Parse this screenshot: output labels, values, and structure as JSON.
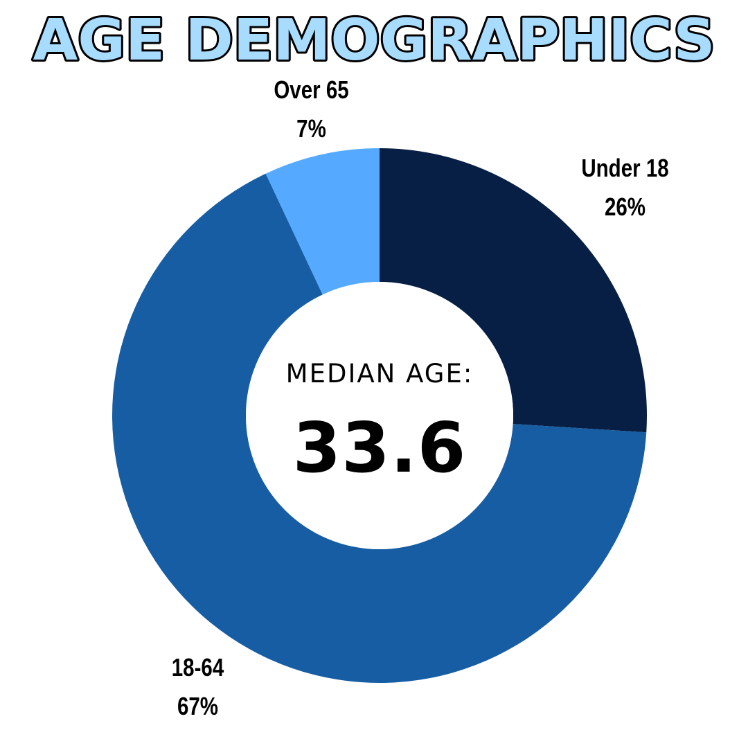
{
  "title": "AGE DEMOGRAPHICS",
  "center": {
    "caption": "MEDIAN AGE:",
    "value": "33.6"
  },
  "chart_data": {
    "type": "pie",
    "donut": true,
    "title": "AGE DEMOGRAPHICS",
    "categories": [
      "Under 18",
      "18-64",
      "Over 65"
    ],
    "values": [
      26,
      67,
      7
    ],
    "labels": [
      {
        "name": "Under 18",
        "percent": "26%"
      },
      {
        "name": "18-64",
        "percent": "67%"
      },
      {
        "name": "Over 65",
        "percent": "7%"
      }
    ],
    "colors": [
      "#071f44",
      "#175da3",
      "#55aaff"
    ],
    "start_angle_deg": 0,
    "direction": "clockwise",
    "legend": "none"
  }
}
